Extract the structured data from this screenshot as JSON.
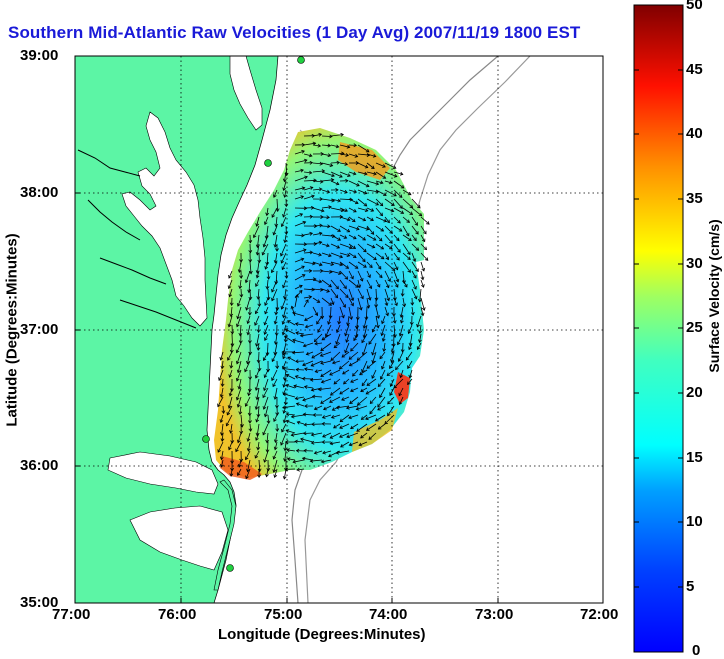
{
  "title": "Southern Mid-Atlantic Raw Velocities (1 Day Avg) 2007/11/19 1800 EST",
  "map": {
    "xlabel": "Longitude (Degrees:Minutes)",
    "ylabel": "Latitude (Degrees:Minutes)",
    "lon_range": [
      -77,
      -72
    ],
    "lat_range": [
      35,
      39
    ],
    "x_ticks": [
      "77:00",
      "76:00",
      "75:00",
      "74:00",
      "73:00",
      "72:00"
    ],
    "y_ticks": [
      "39:00",
      "38:00",
      "37:00",
      "36:00",
      "35:00"
    ],
    "land_color": "#5cf5a5",
    "water_color": "#ffffff",
    "grid": true
  },
  "colorbar": {
    "label": "Surface Velocity (cm/s)",
    "min": 0,
    "max": 50,
    "ticks": [
      "50",
      "45",
      "40",
      "35",
      "30",
      "25",
      "20",
      "15",
      "10",
      "5",
      "0"
    ],
    "colormap": "jet"
  }
}
